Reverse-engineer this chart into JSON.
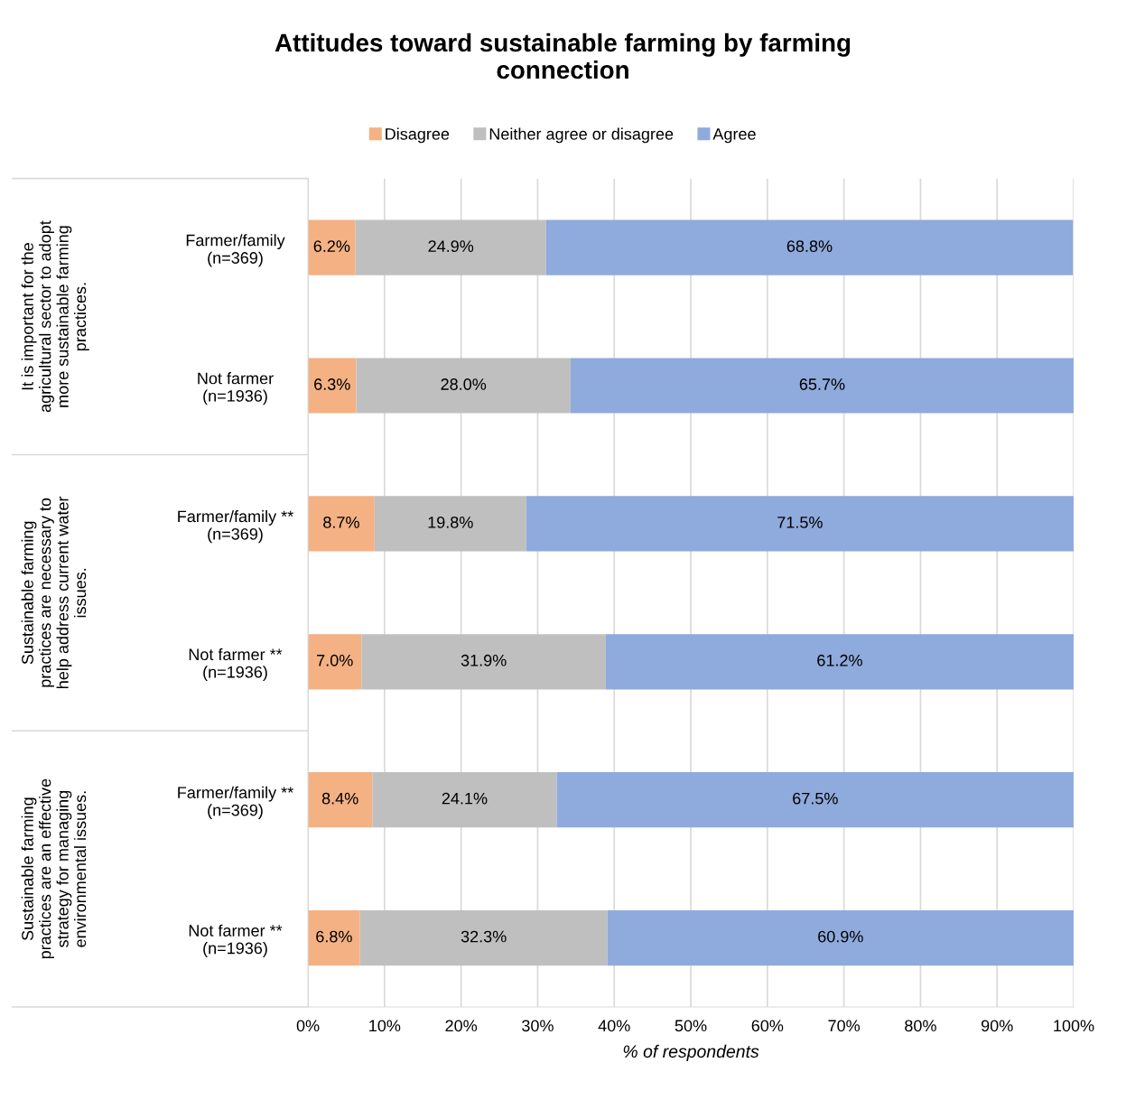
{
  "chart_data": {
    "type": "bar",
    "orientation": "horizontal",
    "stacked": true,
    "title": "Attitudes toward sustainable farming by farming\nconnection",
    "xlabel": "% of respondents",
    "categories": [
      "Farmer/family\n(n=369)",
      "Not farmer\n(n=1936)",
      "Farmer/family **\n(n=369)",
      "Not farmer **\n(n=1936)",
      "Farmer/family **\n(n=369)",
      "Not farmer **\n(n=1936)"
    ],
    "series": [
      {
        "name": "Disagree",
        "color": "#f4b183",
        "values": [
          6.2,
          6.3,
          8.7,
          7.0,
          8.4,
          6.8
        ],
        "value_labels": [
          "6.2%",
          "6.3%",
          "8.7%",
          "7.0%",
          "8.4%",
          "6.8%"
        ]
      },
      {
        "name": "Neither agree or disagree",
        "color": "#bfbfbf",
        "values": [
          24.9,
          28.0,
          19.8,
          31.9,
          24.1,
          32.3
        ],
        "value_labels": [
          "24.9%",
          "28.0%",
          "19.8%",
          "31.9%",
          "24.1%",
          "32.3%"
        ]
      },
      {
        "name": "Agree",
        "color": "#8faadc",
        "values": [
          68.8,
          65.7,
          71.5,
          61.2,
          67.5,
          60.9
        ],
        "value_labels": [
          "68.8%",
          "65.7%",
          "71.5%",
          "61.2%",
          "67.5%",
          "60.9%"
        ]
      }
    ],
    "annotations": [
      "It is important for the\nagricultural sector to adopt\nmore sustainable farming\npractices.",
      "Sustainable farming\npractices are necessary to\nhelp address current water\nissues.",
      "Sustainable farming\npractices are an effective\nstrategy for managing\nenvironmental issues."
    ],
    "xlim": [
      0,
      100
    ],
    "xticks": [
      {
        "value": 0,
        "label": "0%"
      },
      {
        "value": 10,
        "label": "10%"
      },
      {
        "value": 20,
        "label": "20%"
      },
      {
        "value": 30,
        "label": "30%"
      },
      {
        "value": 40,
        "label": "40%"
      },
      {
        "value": 50,
        "label": "50%"
      },
      {
        "value": 60,
        "label": "60%"
      },
      {
        "value": 70,
        "label": "70%"
      },
      {
        "value": 80,
        "label": "80%"
      },
      {
        "value": 90,
        "label": "90%"
      },
      {
        "value": 100,
        "label": "100%"
      }
    ],
    "grid": "x",
    "legend": "top"
  }
}
